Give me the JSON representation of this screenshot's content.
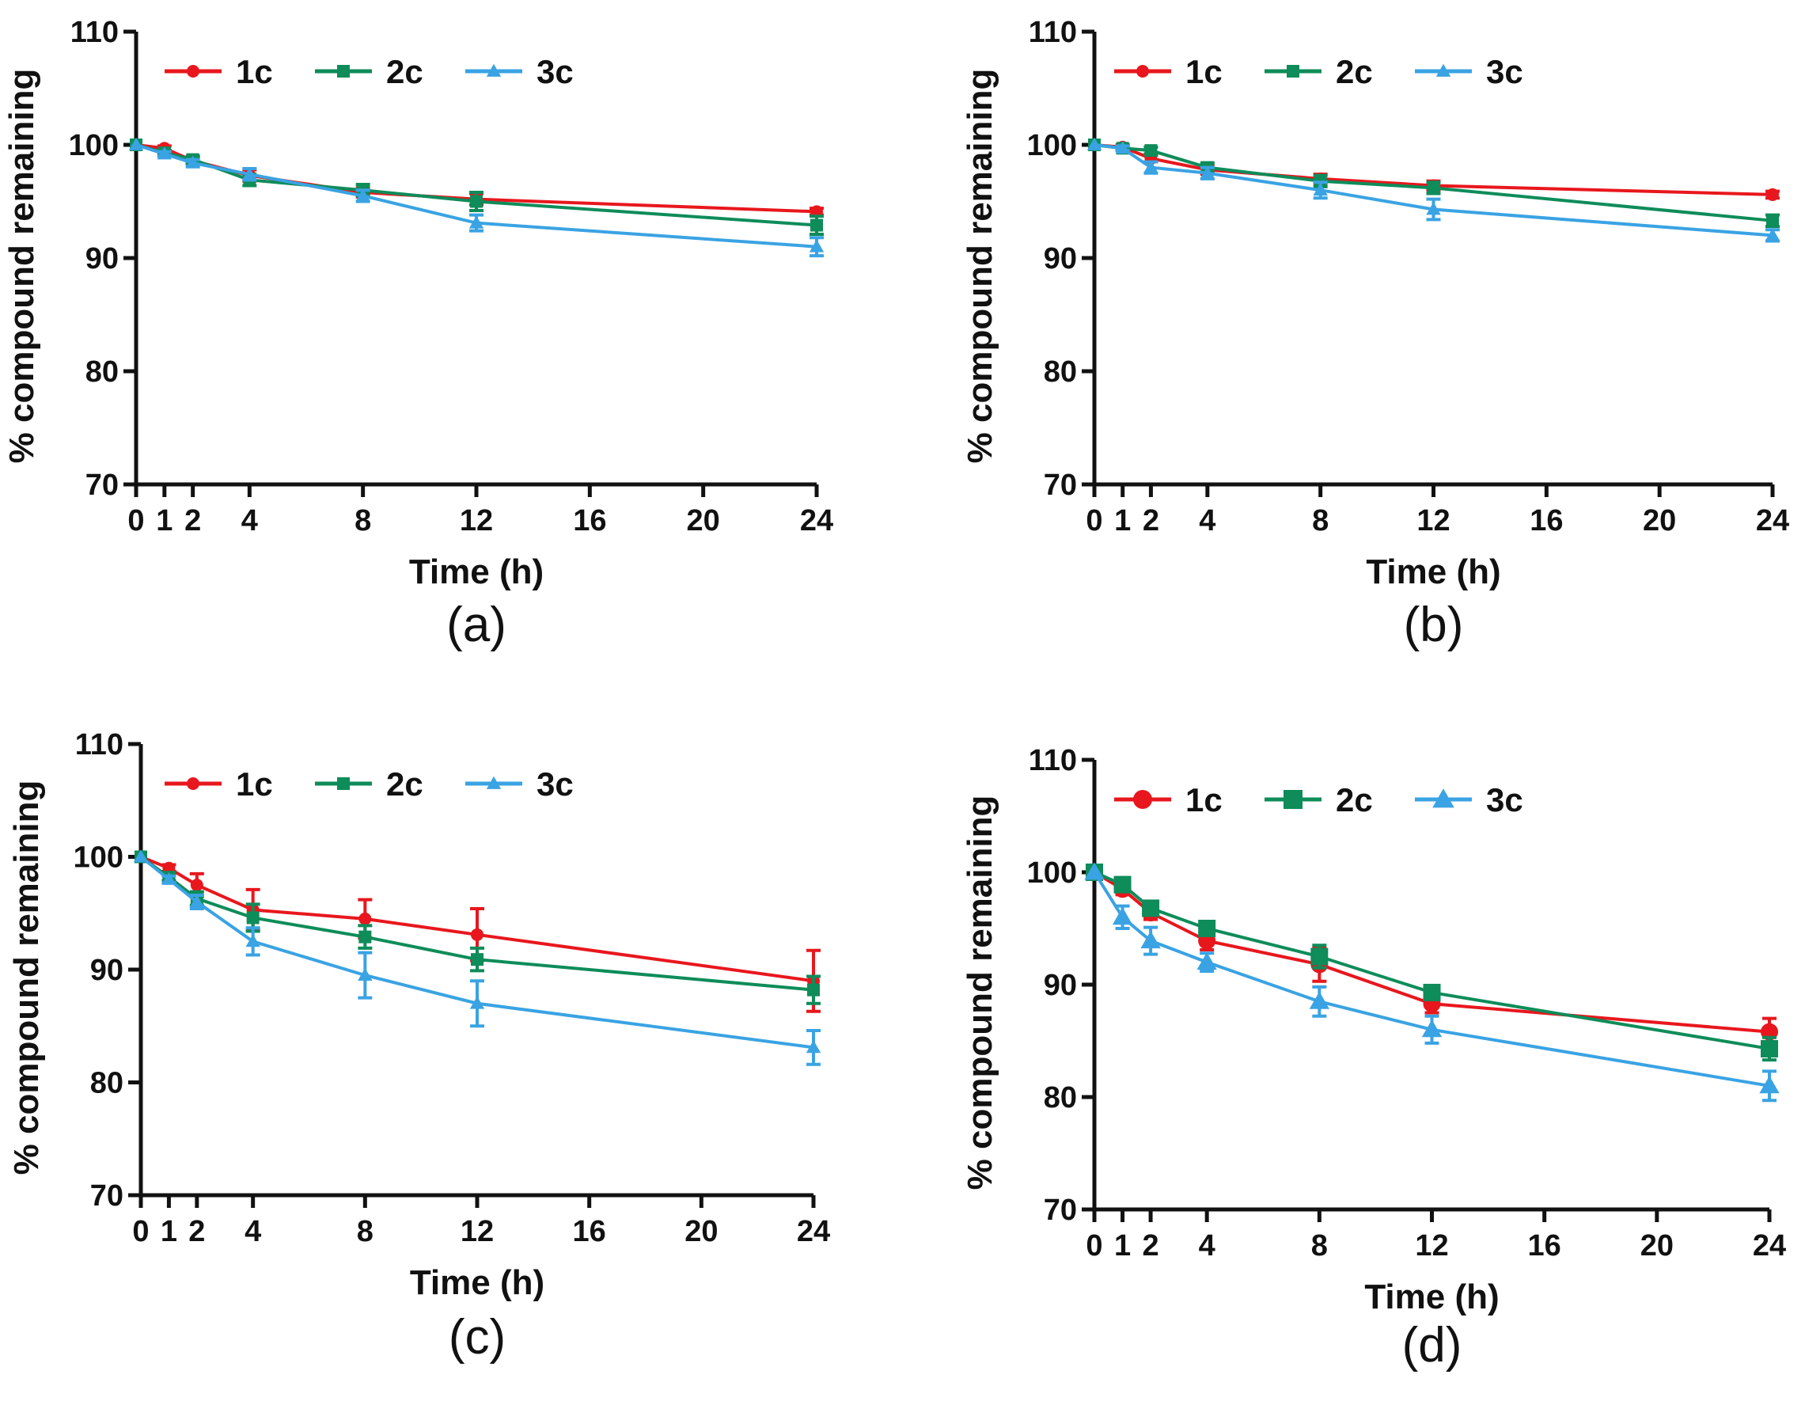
{
  "colors": {
    "1c": "#e8171d",
    "2c": "#0e8c5a",
    "3c": "#3aa3e3",
    "axis": "#111111"
  },
  "chart_data": [
    {
      "type": "line",
      "panel_label": "(a)",
      "xlabel": "Time (h)",
      "ylabel": "% compound remaining",
      "ylim": [
        70,
        110
      ],
      "yticks": [
        70,
        80,
        90,
        100,
        110
      ],
      "xlim": [
        0,
        24
      ],
      "xticks": [
        0,
        1,
        2,
        4,
        8,
        12,
        16,
        20,
        24
      ],
      "x": [
        0,
        1,
        2,
        4,
        8,
        12,
        24
      ],
      "legend": [
        "1c",
        "2c",
        "3c"
      ],
      "series": [
        {
          "name": "1c",
          "marker": "circle",
          "values": [
            100,
            99.7,
            98.6,
            97.3,
            95.8,
            95.2,
            94.1
          ],
          "errors": [
            0,
            0.2,
            0.3,
            0.5,
            0.4,
            0.5,
            0.3
          ]
        },
        {
          "name": "2c",
          "marker": "square",
          "values": [
            100,
            99.3,
            98.7,
            96.9,
            96.0,
            95.0,
            92.9
          ],
          "errors": [
            0,
            0.2,
            0.3,
            0.5,
            0.5,
            0.8,
            0.8
          ]
        },
        {
          "name": "3c",
          "marker": "triangle",
          "values": [
            100,
            99.2,
            98.4,
            97.4,
            95.5,
            93.1,
            91.0
          ],
          "errors": [
            0,
            0.2,
            0.3,
            0.5,
            0.5,
            0.7,
            0.8
          ]
        }
      ]
    },
    {
      "type": "line",
      "panel_label": "(b)",
      "xlabel": "Time (h)",
      "ylabel": "% compound remaining",
      "ylim": [
        70,
        110
      ],
      "yticks": [
        70,
        80,
        90,
        100,
        110
      ],
      "xlim": [
        0,
        24
      ],
      "xticks": [
        0,
        1,
        2,
        4,
        8,
        12,
        16,
        20,
        24
      ],
      "x": [
        0,
        1,
        2,
        4,
        8,
        12,
        24
      ],
      "legend": [
        "1c",
        "2c",
        "3c"
      ],
      "series": [
        {
          "name": "1c",
          "marker": "circle",
          "values": [
            100,
            99.8,
            98.8,
            97.8,
            97.0,
            96.4,
            95.6
          ],
          "errors": [
            0,
            0.2,
            0.3,
            0.4,
            0.4,
            0.4,
            0.3
          ]
        },
        {
          "name": "2c",
          "marker": "square",
          "values": [
            100,
            99.7,
            99.5,
            98.0,
            96.8,
            96.2,
            93.3
          ],
          "errors": [
            0,
            0.2,
            0.3,
            0.4,
            0.5,
            0.5,
            0.5
          ]
        },
        {
          "name": "3c",
          "marker": "triangle",
          "values": [
            100,
            99.7,
            98.0,
            97.5,
            96.0,
            94.3,
            92.0
          ],
          "errors": [
            0,
            0.2,
            0.5,
            0.5,
            0.7,
            0.9,
            0.5
          ]
        }
      ]
    },
    {
      "type": "line",
      "panel_label": "(c)",
      "xlabel": "Time (h)",
      "ylabel": "% compound remaining",
      "ylim": [
        70,
        110
      ],
      "yticks": [
        70,
        80,
        90,
        100,
        110
      ],
      "xlim": [
        0,
        24
      ],
      "xticks": [
        0,
        1,
        2,
        4,
        8,
        12,
        16,
        20,
        24
      ],
      "x": [
        0,
        1,
        2,
        4,
        8,
        12,
        24
      ],
      "legend": [
        "1c",
        "2c",
        "3c"
      ],
      "series": [
        {
          "name": "1c",
          "marker": "circle",
          "values": [
            100,
            99.0,
            97.5,
            95.3,
            94.5,
            93.1,
            89.0
          ],
          "errors": [
            0,
            0.3,
            1.0,
            1.8,
            1.7,
            2.3,
            2.7
          ]
        },
        {
          "name": "2c",
          "marker": "square",
          "values": [
            100,
            98.2,
            96.3,
            94.6,
            92.9,
            90.9,
            88.2
          ],
          "errors": [
            0,
            0.3,
            0.6,
            1.2,
            1.0,
            1.0,
            1.2
          ]
        },
        {
          "name": "3c",
          "marker": "triangle",
          "values": [
            100,
            98.0,
            96.0,
            92.5,
            89.5,
            87.0,
            83.1
          ],
          "errors": [
            0,
            0.3,
            0.6,
            1.2,
            2.0,
            2.0,
            1.5
          ]
        }
      ]
    },
    {
      "type": "line",
      "panel_label": "(d)",
      "xlabel": "Time (h)",
      "ylabel": "% compound remaining",
      "ylim": [
        70,
        110
      ],
      "yticks": [
        70,
        80,
        90,
        100,
        110
      ],
      "xlim": [
        0,
        24
      ],
      "xticks": [
        0,
        1,
        2,
        4,
        8,
        12,
        16,
        20,
        24
      ],
      "x": [
        0,
        1,
        2,
        4,
        8,
        12,
        24
      ],
      "legend": [
        "1c",
        "2c",
        "3c"
      ],
      "series": [
        {
          "name": "1c",
          "marker": "circle",
          "values": [
            100,
            98.5,
            96.4,
            93.9,
            91.8,
            88.3,
            85.8
          ],
          "errors": [
            0,
            0.5,
            0.6,
            0.8,
            1.5,
            0.8,
            1.2
          ]
        },
        {
          "name": "2c",
          "marker": "square",
          "values": [
            100,
            98.9,
            96.8,
            95.0,
            92.5,
            89.3,
            84.3
          ],
          "errors": [
            0,
            0.4,
            0.5,
            0.6,
            1.0,
            0.6,
            1.0
          ]
        },
        {
          "name": "3c",
          "marker": "triangle",
          "values": [
            100,
            96.0,
            93.9,
            92.0,
            88.5,
            86.0,
            81.0
          ],
          "errors": [
            0,
            1.0,
            1.2,
            0.8,
            1.3,
            1.2,
            1.3
          ]
        }
      ]
    }
  ]
}
